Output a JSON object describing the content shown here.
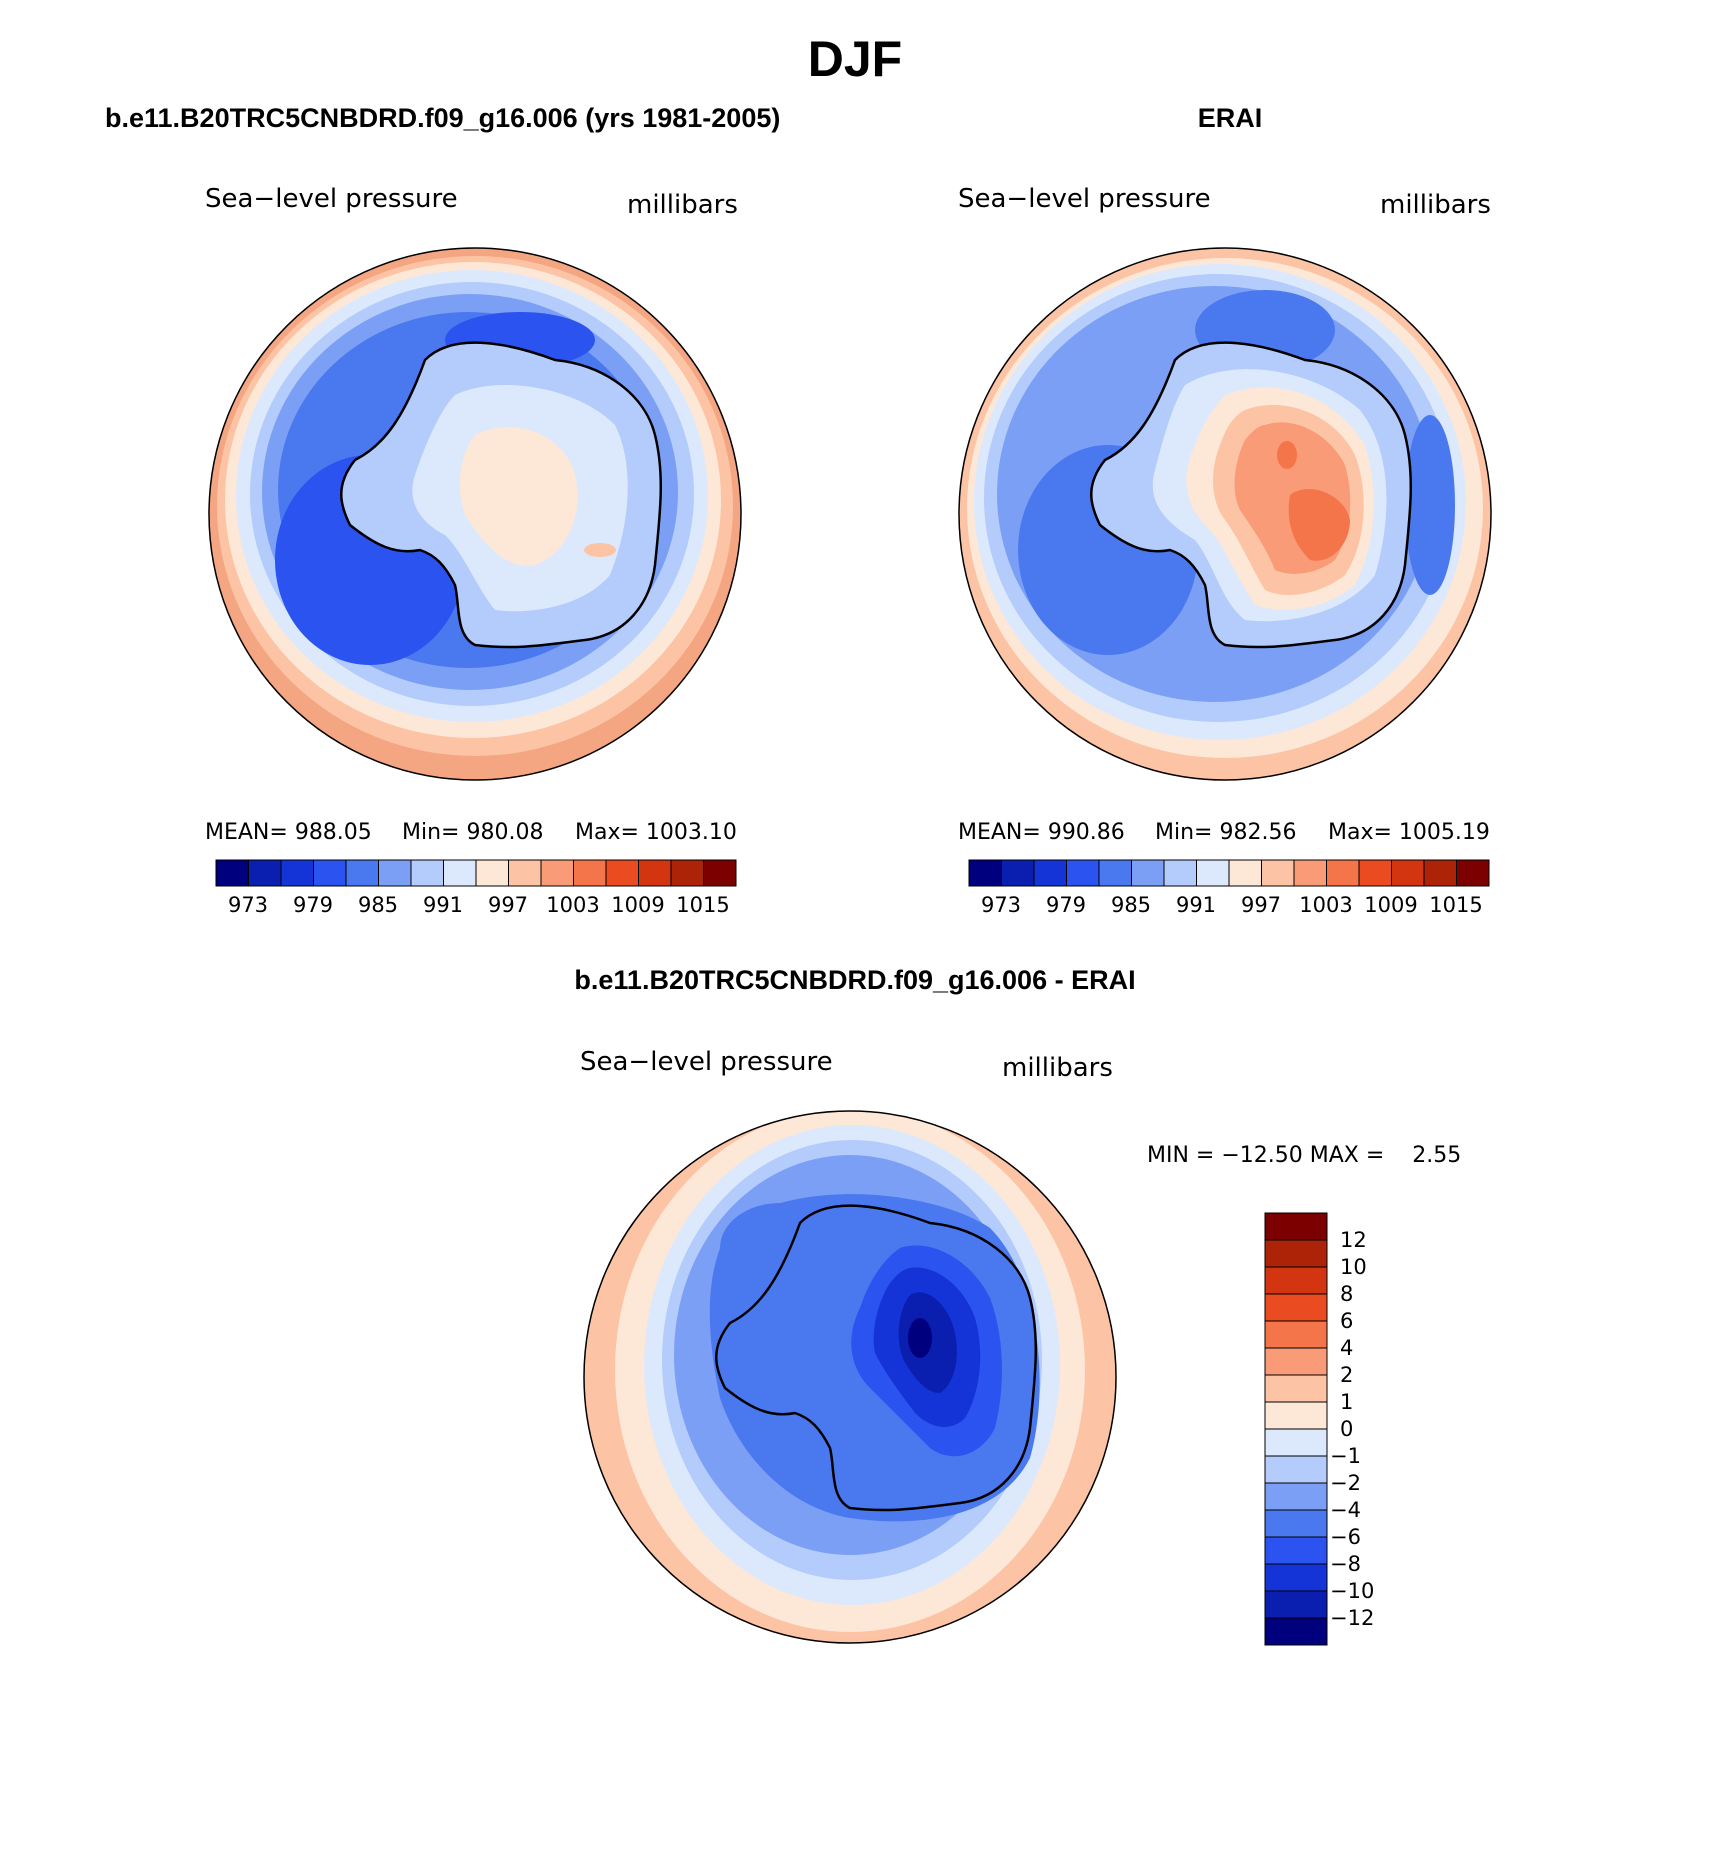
{
  "figure_title": "DJF",
  "panels": [
    {
      "title": "b.e11.B20TRC5CNBDRD.f09_g16.006 (yrs 1981-2005)",
      "left_label": "Sea−level pressure",
      "right_label": "millibars",
      "stats": {
        "mean": "MEAN= 988.05",
        "min": "Min= 980.08",
        "max": "Max= 1003.10"
      },
      "colorbar_ticks": [
        "973",
        "979",
        "985",
        "991",
        "997",
        "1003",
        "1009",
        "1015"
      ]
    },
    {
      "title": "ERAI",
      "left_label": "Sea−level pressure",
      "right_label": "millibars",
      "stats": {
        "mean": "MEAN= 990.86",
        "min": "Min= 982.56",
        "max": "Max= 1005.19"
      },
      "colorbar_ticks": [
        "973",
        "979",
        "985",
        "991",
        "997",
        "1003",
        "1009",
        "1015"
      ]
    },
    {
      "title": "b.e11.B20TRC5CNBDRD.f09_g16.006 - ERAI",
      "left_label": "Sea−level pressure",
      "right_label": "millibars",
      "minmax": "MIN = −12.50 MAX =    2.55",
      "colorbar_ticks": [
        "12",
        "10",
        "8",
        "6",
        "4",
        "2",
        "1",
        "0",
        "−1",
        "−2",
        "−4",
        "−6",
        "−8",
        "−10",
        "−12"
      ]
    }
  ],
  "colors": {
    "abs_scale": [
      "#00007f",
      "#0a1fb0",
      "#1434d8",
      "#2b53ef",
      "#4a78ef",
      "#7c9ff6",
      "#b3ccfb",
      "#dce9fd",
      "#fde7d6",
      "#fcc4a4",
      "#f99b76",
      "#f5754a",
      "#eb4b20",
      "#d23510",
      "#ad2308",
      "#7d0000"
    ],
    "diff_scale": [
      "#7d0000",
      "#ad2308",
      "#d23510",
      "#eb4b20",
      "#f5754a",
      "#f99b76",
      "#fcc4a4",
      "#fde7d6",
      "#dce9fd",
      "#b3ccfb",
      "#7c9ff6",
      "#4a78ef",
      "#2b53ef",
      "#1434d8",
      "#0a1fb0",
      "#00007f"
    ]
  }
}
